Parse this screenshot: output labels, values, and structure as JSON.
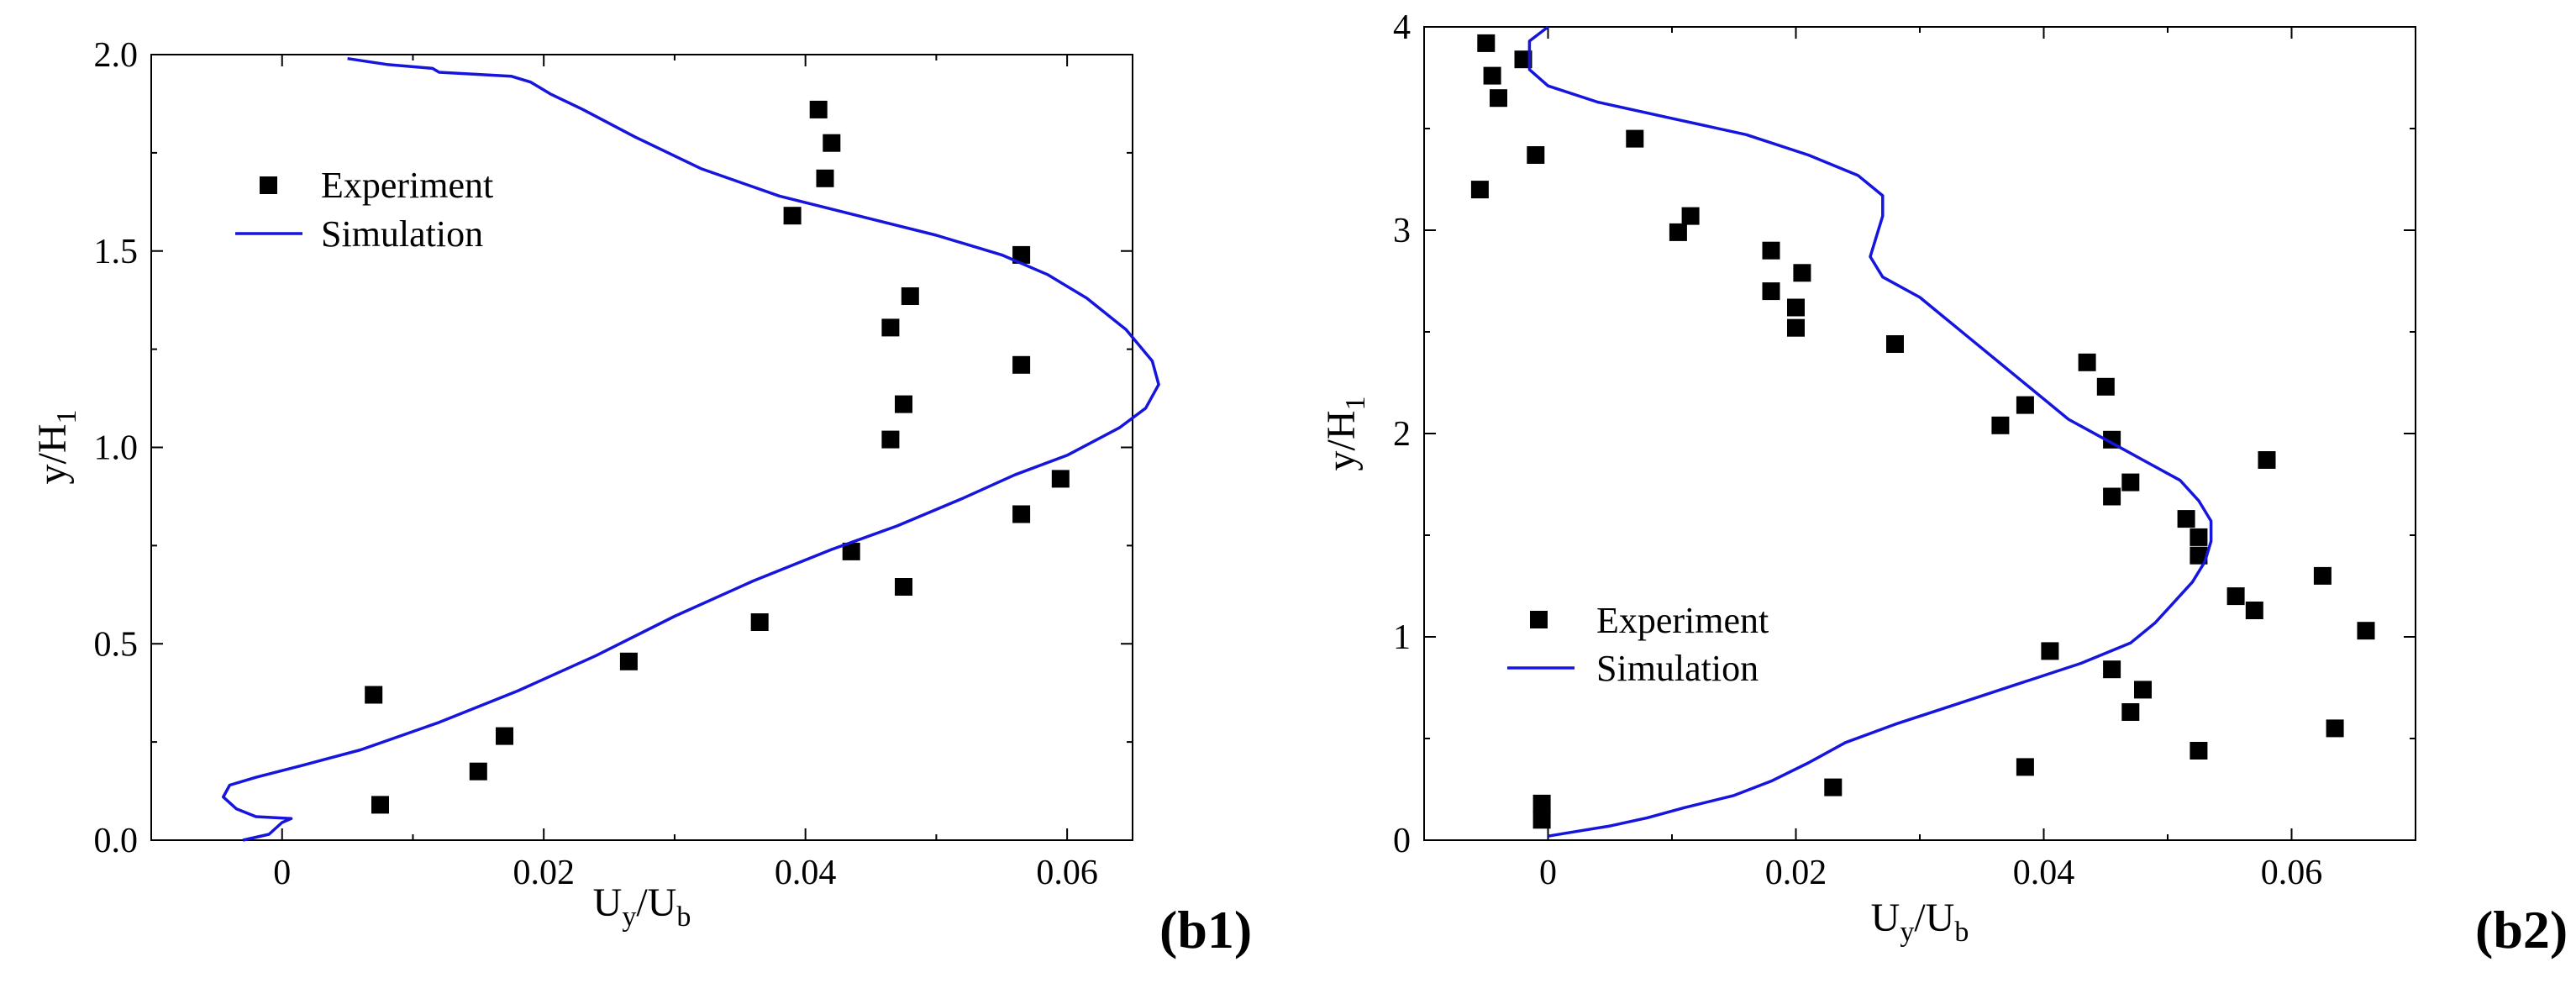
{
  "chart_data": [
    {
      "type": "scatter",
      "panel_label": "(b1)",
      "xlabel": {
        "main": "U",
        "sub1": "y",
        "mid": "/U",
        "sub2": "b"
      },
      "ylabel": {
        "main": "y/H",
        "sub": "1"
      },
      "xlim": [
        -0.01,
        0.065
      ],
      "ylim": [
        0,
        2.0
      ],
      "xticks": [
        0,
        0.02,
        0.04,
        0.06
      ],
      "xtick_labels": [
        "0",
        "0.02",
        "0.04",
        "0.06"
      ],
      "yticks": [
        0,
        0.5,
        1.0,
        1.5,
        2.0
      ],
      "ytick_labels": [
        "0.0",
        "0.5",
        "1.0",
        "1.5",
        "2.0"
      ],
      "grid": false,
      "legend": {
        "placement": "upper-left",
        "entries": [
          "Experiment",
          "Simulation"
        ]
      },
      "series": [
        {
          "name": "Experiment",
          "kind": "scatter",
          "marker": "square",
          "color": "#000000",
          "points": [
            [
              0.0075,
              0.09
            ],
            [
              0.007,
              0.37
            ],
            [
              0.015,
              0.175
            ],
            [
              0.017,
              0.265
            ],
            [
              0.0265,
              0.455
            ],
            [
              0.0365,
              0.555
            ],
            [
              0.0435,
              0.735
            ],
            [
              0.0475,
              0.645
            ],
            [
              0.0565,
              0.83
            ],
            [
              0.0595,
              0.92
            ],
            [
              0.0465,
              1.02
            ],
            [
              0.0475,
              1.11
            ],
            [
              0.0565,
              1.21
            ],
            [
              0.0465,
              1.305
            ],
            [
              0.048,
              1.385
            ],
            [
              0.0565,
              1.49
            ],
            [
              0.039,
              1.59
            ],
            [
              0.0415,
              1.685
            ],
            [
              0.042,
              1.775
            ],
            [
              0.041,
              1.86
            ]
          ]
        },
        {
          "name": "Simulation",
          "kind": "line",
          "color": "#1515dd",
          "points": [
            [
              -0.003,
              0.0
            ],
            [
              -0.001,
              0.015
            ],
            [
              -0.0005,
              0.03
            ],
            [
              0.0,
              0.045
            ],
            [
              0.0007,
              0.055
            ],
            [
              -0.002,
              0.06
            ],
            [
              -0.0035,
              0.08
            ],
            [
              -0.0045,
              0.11
            ],
            [
              -0.004,
              0.14
            ],
            [
              -0.002,
              0.16
            ],
            [
              0.0015,
              0.19
            ],
            [
              0.006,
              0.23
            ],
            [
              0.012,
              0.3
            ],
            [
              0.018,
              0.38
            ],
            [
              0.024,
              0.47
            ],
            [
              0.03,
              0.57
            ],
            [
              0.036,
              0.66
            ],
            [
              0.042,
              0.74
            ],
            [
              0.047,
              0.8
            ],
            [
              0.052,
              0.87
            ],
            [
              0.056,
              0.93
            ],
            [
              0.06,
              0.98
            ],
            [
              0.064,
              1.05
            ],
            [
              0.066,
              1.1
            ],
            [
              0.067,
              1.16
            ],
            [
              0.0665,
              1.22
            ],
            [
              0.0645,
              1.3
            ],
            [
              0.0615,
              1.38
            ],
            [
              0.0585,
              1.44
            ],
            [
              0.055,
              1.49
            ],
            [
              0.05,
              1.54
            ],
            [
              0.044,
              1.59
            ],
            [
              0.038,
              1.64
            ],
            [
              0.032,
              1.71
            ],
            [
              0.027,
              1.79
            ],
            [
              0.023,
              1.86
            ],
            [
              0.0205,
              1.9
            ],
            [
              0.019,
              1.93
            ],
            [
              0.0175,
              1.945
            ],
            [
              0.012,
              1.955
            ],
            [
              0.0115,
              1.965
            ],
            [
              0.008,
              1.975
            ],
            [
              0.005,
              1.99
            ]
          ]
        }
      ]
    },
    {
      "type": "scatter",
      "panel_label": "(b2)",
      "xlabel": {
        "main": "U",
        "sub1": "y",
        "mid": "/U",
        "sub2": "b"
      },
      "ylabel": {
        "main": "y/H",
        "sub": "1"
      },
      "xlim": [
        -0.01,
        0.07
      ],
      "ylim": [
        0,
        4
      ],
      "xticks": [
        0,
        0.02,
        0.04,
        0.06
      ],
      "xtick_labels": [
        "0",
        "0.02",
        "0.04",
        "0.06"
      ],
      "yticks": [
        0,
        1,
        2,
        3,
        4
      ],
      "ytick_labels": [
        "0",
        "1",
        "2",
        "3",
        "4"
      ],
      "grid": false,
      "legend": {
        "placement": "lower-left",
        "entries": [
          "Experiment",
          "Simulation"
        ]
      },
      "series": [
        {
          "name": "Experiment",
          "kind": "scatter",
          "marker": "square",
          "color": "#000000",
          "points": [
            [
              -0.005,
              3.92
            ],
            [
              -0.0045,
              3.76
            ],
            [
              -0.004,
              3.65
            ],
            [
              -0.002,
              3.84
            ],
            [
              -0.001,
              3.37
            ],
            [
              -0.0055,
              3.2
            ],
            [
              0.007,
              3.45
            ],
            [
              0.0115,
              3.07
            ],
            [
              0.0105,
              2.99
            ],
            [
              0.018,
              2.9
            ],
            [
              0.0205,
              2.79
            ],
            [
              0.018,
              2.7
            ],
            [
              0.02,
              2.62
            ],
            [
              0.02,
              2.52
            ],
            [
              0.028,
              2.44
            ],
            [
              0.0365,
              2.04
            ],
            [
              0.0385,
              2.14
            ],
            [
              0.0435,
              2.35
            ],
            [
              0.045,
              2.23
            ],
            [
              0.0455,
              1.97
            ],
            [
              0.047,
              1.76
            ],
            [
              0.0455,
              1.69
            ],
            [
              0.0515,
              1.58
            ],
            [
              0.0525,
              1.49
            ],
            [
              0.0525,
              1.4
            ],
            [
              0.058,
              1.87
            ],
            [
              0.0555,
              1.2
            ],
            [
              0.057,
              1.13
            ],
            [
              0.0625,
              1.3
            ],
            [
              0.066,
              1.03
            ],
            [
              0.0405,
              0.93
            ],
            [
              0.0455,
              0.84
            ],
            [
              0.048,
              0.74
            ],
            [
              0.047,
              0.63
            ],
            [
              0.0635,
              0.55
            ],
            [
              0.0525,
              0.44
            ],
            [
              0.0385,
              0.36
            ],
            [
              0.023,
              0.26
            ],
            [
              -0.0005,
              0.18
            ],
            [
              -0.0005,
              0.1
            ]
          ]
        },
        {
          "name": "Simulation",
          "kind": "line",
          "color": "#1515dd",
          "points": [
            [
              0.0,
              0.02
            ],
            [
              0.002,
              0.04
            ],
            [
              0.005,
              0.07
            ],
            [
              0.008,
              0.11
            ],
            [
              0.011,
              0.16
            ],
            [
              0.015,
              0.22
            ],
            [
              0.018,
              0.29
            ],
            [
              0.021,
              0.38
            ],
            [
              0.024,
              0.48
            ],
            [
              0.028,
              0.57
            ],
            [
              0.033,
              0.67
            ],
            [
              0.038,
              0.77
            ],
            [
              0.043,
              0.87
            ],
            [
              0.047,
              0.97
            ],
            [
              0.049,
              1.07
            ],
            [
              0.0505,
              1.17
            ],
            [
              0.052,
              1.27
            ],
            [
              0.053,
              1.37
            ],
            [
              0.0535,
              1.47
            ],
            [
              0.0535,
              1.57
            ],
            [
              0.0525,
              1.67
            ],
            [
              0.051,
              1.77
            ],
            [
              0.048,
              1.87
            ],
            [
              0.045,
              1.97
            ],
            [
              0.042,
              2.07
            ],
            [
              0.04,
              2.17
            ],
            [
              0.038,
              2.27
            ],
            [
              0.036,
              2.37
            ],
            [
              0.034,
              2.47
            ],
            [
              0.032,
              2.57
            ],
            [
              0.03,
              2.67
            ],
            [
              0.027,
              2.77
            ],
            [
              0.026,
              2.87
            ],
            [
              0.0265,
              2.97
            ],
            [
              0.027,
              3.07
            ],
            [
              0.027,
              3.17
            ],
            [
              0.025,
              3.27
            ],
            [
              0.021,
              3.37
            ],
            [
              0.016,
              3.47
            ],
            [
              0.01,
              3.55
            ],
            [
              0.004,
              3.63
            ],
            [
              0.0,
              3.71
            ],
            [
              -0.0015,
              3.79
            ],
            [
              -0.0015,
              3.87
            ],
            [
              -0.0015,
              3.93
            ],
            [
              0.0,
              4.0
            ]
          ]
        }
      ]
    }
  ]
}
